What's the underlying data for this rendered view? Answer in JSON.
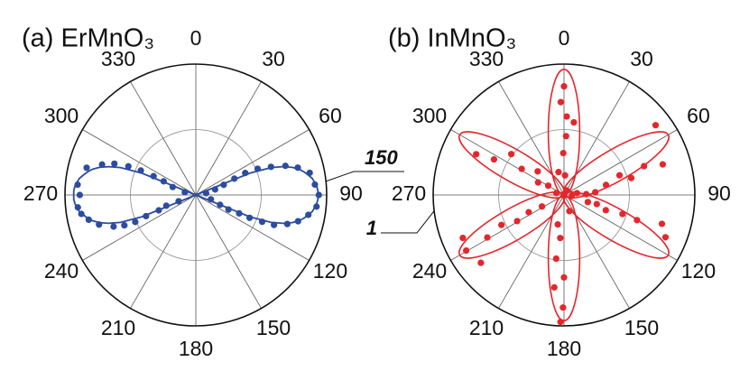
{
  "chart_data": [
    {
      "type": "polar",
      "title": "(a) ErMnO₃",
      "color": "#2b4c9f",
      "rlim": [
        0,
        150
      ],
      "rgrid": [
        75,
        150
      ],
      "rticks": [
        150
      ],
      "thetaticks": [
        0,
        30,
        60,
        90,
        120,
        150,
        180,
        210,
        240,
        270,
        300,
        330
      ],
      "fit": {
        "theta": [
          67,
          68,
          70,
          72,
          74,
          76,
          78,
          80,
          82,
          84,
          86,
          88,
          90,
          92,
          94,
          96,
          98,
          100,
          102,
          104,
          106,
          108,
          110,
          112,
          113,
          247,
          248,
          250,
          252,
          254,
          256,
          258,
          260,
          262,
          264,
          266,
          268,
          270,
          272,
          274,
          276,
          278,
          280,
          282,
          284,
          286,
          288,
          290,
          292,
          293
        ],
        "r": [
          0,
          67,
          92,
          105,
          115,
          122,
          127,
          131,
          135,
          137,
          139,
          140,
          140,
          140,
          139,
          137,
          135,
          131,
          127,
          122,
          115,
          105,
          92,
          67,
          0,
          0,
          67,
          92,
          105,
          115,
          122,
          127,
          131,
          135,
          137,
          139,
          140,
          140,
          140,
          139,
          137,
          135,
          131,
          127,
          122,
          115,
          105,
          92,
          67,
          0
        ]
      },
      "points": {
        "theta": [
          85,
          90,
          95.5,
          79,
          75,
          72,
          69.5,
          67,
          66,
          67,
          70,
          74,
          80,
          106,
          112,
          114,
          113,
          113,
          112,
          111,
          107.6,
          104.4,
          100,
          275,
          270,
          264,
          284,
          288,
          291,
          293,
          294,
          294,
          293,
          289,
          284,
          250,
          250,
          247.5,
          247,
          246,
          247,
          249,
          253,
          257,
          260.6
        ],
        "r": [
          137,
          141,
          139,
          133,
          121,
          108,
          92,
          77,
          62,
          48,
          34,
          23,
          12,
          18,
          30,
          41,
          54,
          67,
          82,
          96,
          110,
          121,
          131,
          136,
          133,
          136,
          129,
          113,
          100,
          84,
          69,
          53,
          40,
          28,
          13,
          21,
          36,
          46,
          62,
          76,
          89,
          101,
          116,
          126,
          133
        ]
      }
    },
    {
      "type": "polar",
      "title": "(b) InMnO₃",
      "color": "#e5262b",
      "rlim": [
        0,
        1
      ],
      "rgrid": [
        0.5,
        1
      ],
      "rticks": [
        1
      ],
      "thetaticks": [
        0,
        30,
        60,
        90,
        120,
        150,
        180,
        210,
        240,
        270,
        300,
        330
      ],
      "petals": [
        {
          "angle": 0,
          "a": 0.48,
          "b": 0.12
        },
        {
          "angle": 60,
          "a": 0.46,
          "b": 0.12
        },
        {
          "angle": 120,
          "a": 0.46,
          "b": 0.12
        },
        {
          "angle": 180,
          "a": 0.48,
          "b": 0.12
        },
        {
          "angle": 240,
          "a": 0.46,
          "b": 0.12
        },
        {
          "angle": 300,
          "a": 0.46,
          "b": 0.12
        }
      ],
      "points": {
        "theta": [
          358,
          2,
          7.7,
          2,
          359,
          346.5,
          3,
          0,
          186,
          181.6,
          180.5,
          180,
          187,
          185,
          192,
          161.6,
          52.7,
          72.8,
          70.2,
          75.8,
          70.5,
          76.6,
          85,
          88,
          112.6,
          106.4,
          109,
          108,
          110,
          105.5,
          106.5,
          240.4,
          230.8,
          247,
          241,
          244.4,
          240.9,
          244,
          242.5,
          294.9,
          296.9,
          307.8,
          301.7,
          311.9,
          295.8,
          300.5,
          284,
          96,
          82,
          31
        ],
        "r": [
          0.71,
          0.6,
          0.56,
          0.45,
          0.32,
          0.18,
          0.15,
          0.83,
          0.71,
          0.97,
          0.86,
          0.63,
          0.49,
          0.33,
          0.23,
          0.13,
          0.88,
          0.79,
          0.65,
          0.53,
          0.45,
          0.33,
          0.24,
          0.17,
          0.84,
          0.78,
          0.59,
          0.47,
          0.34,
          0.26,
          0.19,
          0.86,
          0.82,
          0.84,
          0.67,
          0.53,
          0.41,
          0.3,
          0.19,
          0.74,
          0.6,
          0.51,
          0.38,
          0.27,
          0.22,
          0.14,
          0.06,
          0.06,
          0.1,
          0.04
        ]
      }
    }
  ]
}
